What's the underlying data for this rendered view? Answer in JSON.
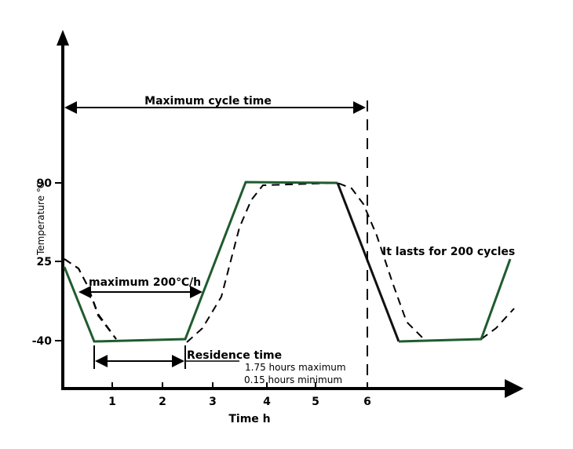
{
  "chart_data": {
    "type": "line",
    "xlabel": "Time h",
    "ylabel": "Temperature ℃",
    "x_ticks": [
      "1",
      "2",
      "3",
      "4",
      "5",
      "6"
    ],
    "y_ticks": [
      "90",
      "25",
      "-40"
    ],
    "annotations": {
      "cycle": "Maximum cycle time",
      "rate": "maximum 200℃/h",
      "residence": "Residence time",
      "residence_max": "1.75 hours maximum",
      "residence_min": "0.15 hours minimum",
      "cycles": "It lasts for 200 cycles"
    },
    "colors": {
      "profile": "#1f5c2e",
      "axis": "#000000"
    }
  }
}
